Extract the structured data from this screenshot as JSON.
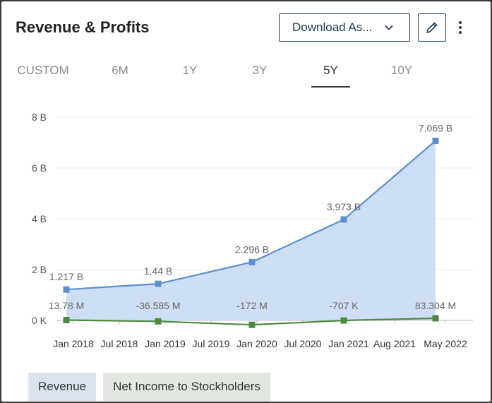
{
  "header": {
    "title": "Revenue & Profits",
    "download_label": "Download As...",
    "icons": {
      "download_chevron": "chevron-down-icon",
      "edit": "pencil-icon",
      "more": "more-vertical-icon"
    }
  },
  "tabs": [
    {
      "label": "CUSTOM",
      "active": false
    },
    {
      "label": "6M",
      "active": false
    },
    {
      "label": "1Y",
      "active": false
    },
    {
      "label": "3Y",
      "active": false
    },
    {
      "label": "5Y",
      "active": true
    },
    {
      "label": "10Y",
      "active": false
    }
  ],
  "legend": [
    {
      "label": "Revenue",
      "color": "#5b8fcf"
    },
    {
      "label": "Net Income to Stockholders",
      "color": "#4e8a3e"
    }
  ],
  "colors": {
    "revenue_line": "#5b8fcf",
    "revenue_area": "#c9dcf4",
    "net_income_line": "#4e8a3e",
    "net_income_marker": "#4e8a3e",
    "grid": "#ececec",
    "axis_text": "#555555"
  },
  "chart_data": {
    "type": "area",
    "x_tick_labels": [
      "Jan 2018",
      "Jul 2018",
      "Jan 2019",
      "Jul 2019",
      "Jan 2020",
      "Jul 2020",
      "Jan 2021",
      "Aug 2021",
      "May 2022"
    ],
    "y_tick_labels": [
      "0 K",
      "2 B",
      "4 B",
      "6 B",
      "8 B"
    ],
    "y_ticks": [
      0,
      2000000000,
      4000000000,
      6000000000,
      8000000000
    ],
    "ylim": [
      0,
      8000000000
    ],
    "grid": true,
    "series": [
      {
        "name": "Revenue",
        "x": [
          "2017-12",
          "2018-12",
          "2019-12",
          "2020-12",
          "2021-12"
        ],
        "values": [
          1217000000,
          1440000000,
          2296000000,
          3973000000,
          7069000000
        ],
        "labels": [
          "1.217 B",
          "1.44 B",
          "2.296 B",
          "3.973 B",
          "7.069 B"
        ]
      },
      {
        "name": "Net Income to Stockholders",
        "x": [
          "2017-12",
          "2018-12",
          "2019-12",
          "2020-12",
          "2021-12"
        ],
        "values": [
          13780000,
          -36585000,
          -172000000,
          -707000,
          83304000
        ],
        "labels": [
          "13.78 M",
          "-36.585 M",
          "-172 M",
          "-707 K",
          "83.304 M"
        ]
      }
    ]
  }
}
